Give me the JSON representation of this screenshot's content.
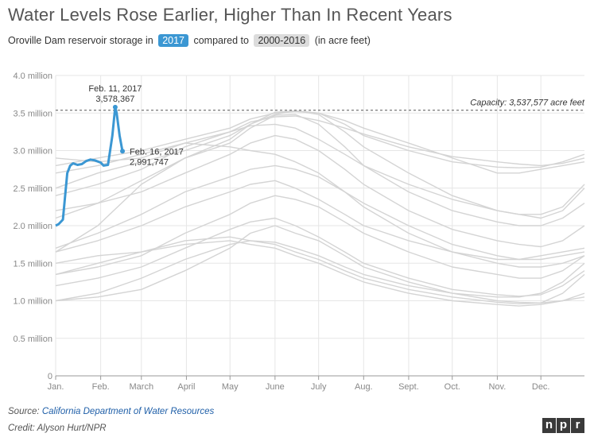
{
  "header": {
    "title": "Water Levels Rose Earlier, Higher Than In Recent Years",
    "subtitle_prefix": "Oroville Dam reservoir storage in",
    "badge_current": "2017",
    "subtitle_mid": "compared to",
    "badge_hist": "2000-2016",
    "subtitle_suffix": "(in acre feet)"
  },
  "footer": {
    "source_label": "Source:",
    "source_link": "California Department of Water Resources",
    "credit": "Credit: Alyson Hurt/NPR",
    "logo": [
      "n",
      "p",
      "r"
    ]
  },
  "colors": {
    "current": "#3b97d3",
    "history": "#d4d4d4",
    "grid": "#e6e6e6",
    "capacity": "#555555"
  },
  "chart_data": {
    "type": "line",
    "x_unit": "day of year",
    "xlim": [
      1,
      365
    ],
    "ylim": [
      0,
      4000000
    ],
    "grid": true,
    "y_ticks": [
      {
        "value": 0,
        "label": "0"
      },
      {
        "value": 500000,
        "label": "0.5 million"
      },
      {
        "value": 1000000,
        "label": "1.0 million"
      },
      {
        "value": 1500000,
        "label": "1.5 million"
      },
      {
        "value": 2000000,
        "label": "2.0 million"
      },
      {
        "value": 2500000,
        "label": "2.5 million"
      },
      {
        "value": 3000000,
        "label": "3.0 million"
      },
      {
        "value": 3500000,
        "label": "3.5 million"
      },
      {
        "value": 4000000,
        "label": "4.0 million"
      }
    ],
    "x_ticks": [
      {
        "day": 1,
        "label": "Jan."
      },
      {
        "day": 32,
        "label": "Feb."
      },
      {
        "day": 60,
        "label": "March"
      },
      {
        "day": 91,
        "label": "April"
      },
      {
        "day": 121,
        "label": "May"
      },
      {
        "day": 152,
        "label": "June"
      },
      {
        "day": 182,
        "label": "July"
      },
      {
        "day": 213,
        "label": "Aug."
      },
      {
        "day": 244,
        "label": "Sept."
      },
      {
        "day": 274,
        "label": "Oct."
      },
      {
        "day": 305,
        "label": "Nov."
      },
      {
        "day": 335,
        "label": "Dec."
      }
    ],
    "capacity": {
      "value": 3537577,
      "label": "Capacity: 3,537,577 acre feet"
    },
    "annotations": [
      {
        "date": "Feb. 11, 2017",
        "value": "3,578,367"
      },
      {
        "date": "Feb. 16, 2017",
        "value": "2,991,747"
      }
    ],
    "current": {
      "x": [
        1,
        3,
        6,
        9,
        11,
        13,
        16,
        19,
        22,
        25,
        28,
        32,
        34,
        37,
        40,
        42,
        43,
        45,
        47
      ],
      "y": [
        2000000,
        2020000,
        2080000,
        2700000,
        2800000,
        2830000,
        2810000,
        2820000,
        2860000,
        2880000,
        2870000,
        2840000,
        2800000,
        2810000,
        3200000,
        3578367,
        3500000,
        3200000,
        2991747
      ]
    },
    "series_x": [
      1,
      30,
      60,
      90,
      121,
      135,
      152,
      166,
      182,
      200,
      213,
      244,
      274,
      305,
      320,
      335,
      350,
      365
    ],
    "history": [
      [
        2400000,
        2550000,
        2750000,
        3050000,
        3250000,
        3380000,
        3450000,
        3460000,
        3400000,
        3300000,
        3220000,
        3050000,
        2920000,
        2850000,
        2820000,
        2800000,
        2830000,
        2900000
      ],
      [
        2800000,
        2900000,
        3000000,
        3150000,
        3300000,
        3420000,
        3500000,
        3520000,
        3500000,
        3350000,
        3200000,
        3000000,
        2850000,
        2780000,
        2770000,
        2780000,
        2850000,
        2950000
      ],
      [
        2500000,
        2700000,
        2850000,
        3000000,
        3200000,
        3350000,
        3480000,
        3530000,
        3500000,
        3400000,
        3300000,
        3100000,
        2900000,
        2700000,
        2700000,
        2750000,
        2800000,
        2850000
      ],
      [
        2100000,
        2300000,
        2600000,
        2900000,
        3150000,
        3350000,
        3510000,
        3530000,
        3480000,
        3250000,
        3050000,
        2700000,
        2400000,
        2200000,
        2150000,
        2100000,
        2200000,
        2500000
      ],
      [
        1650000,
        2000000,
        2550000,
        2900000,
        3100000,
        3300000,
        3470000,
        3480000,
        3350000,
        3050000,
        2800000,
        2450000,
        2200000,
        2050000,
        2000000,
        2000000,
        2100000,
        2300000
      ],
      [
        2900000,
        2850000,
        2900000,
        3100000,
        3050000,
        3000000,
        2950000,
        2850000,
        2700000,
        2450000,
        2250000,
        1900000,
        1650000,
        1500000,
        1450000,
        1450000,
        1500000,
        1600000
      ],
      [
        1700000,
        1900000,
        2150000,
        2450000,
        2650000,
        2750000,
        2800000,
        2750000,
        2650000,
        2450000,
        2300000,
        2000000,
        1750000,
        1600000,
        1550000,
        1550000,
        1600000,
        1650000
      ],
      [
        1350000,
        1450000,
        1600000,
        1900000,
        2150000,
        2300000,
        2400000,
        2350000,
        2250000,
        2050000,
        1900000,
        1650000,
        1450000,
        1350000,
        1300000,
        1300000,
        1400000,
        1600000
      ],
      [
        1000000,
        1050000,
        1150000,
        1400000,
        1700000,
        1900000,
        2000000,
        1900000,
        1800000,
        1600000,
        1450000,
        1250000,
        1100000,
        1000000,
        980000,
        970000,
        1000000,
        1050000
      ],
      [
        1500000,
        1600000,
        1650000,
        1750000,
        1800000,
        1750000,
        1700000,
        1600000,
        1500000,
        1350000,
        1250000,
        1100000,
        1000000,
        950000,
        930000,
        950000,
        1000000,
        1100000
      ],
      [
        1350000,
        1500000,
        1650000,
        1800000,
        1850000,
        1800000,
        1750000,
        1650000,
        1550000,
        1400000,
        1300000,
        1150000,
        1050000,
        980000,
        960000,
        970000,
        1100000,
        1350000
      ],
      [
        1000000,
        1100000,
        1300000,
        1550000,
        1750000,
        1800000,
        1780000,
        1700000,
        1600000,
        1450000,
        1350000,
        1200000,
        1100000,
        1050000,
        1050000,
        1100000,
        1250000,
        1500000
      ],
      [
        1650000,
        1800000,
        2000000,
        2250000,
        2450000,
        2550000,
        2600000,
        2500000,
        2350000,
        2150000,
        2000000,
        1800000,
        1650000,
        1550000,
        1550000,
        1600000,
        1650000,
        1700000
      ],
      [
        2200000,
        2300000,
        2450000,
        2700000,
        2950000,
        3100000,
        3200000,
        3150000,
        3000000,
        2750000,
        2550000,
        2200000,
        1950000,
        1800000,
        1750000,
        1720000,
        1800000,
        2000000
      ],
      [
        1200000,
        1300000,
        1450000,
        1700000,
        1950000,
        2050000,
        2100000,
        2000000,
        1850000,
        1650000,
        1500000,
        1300000,
        1150000,
        1080000,
        1060000,
        1080000,
        1200000,
        1400000
      ],
      [
        2700000,
        2800000,
        2950000,
        3100000,
        3250000,
        3330000,
        3350000,
        3300000,
        3150000,
        2950000,
        2800000,
        2550000,
        2350000,
        2200000,
        2150000,
        2150000,
        2250000,
        2550000
      ]
    ]
  }
}
